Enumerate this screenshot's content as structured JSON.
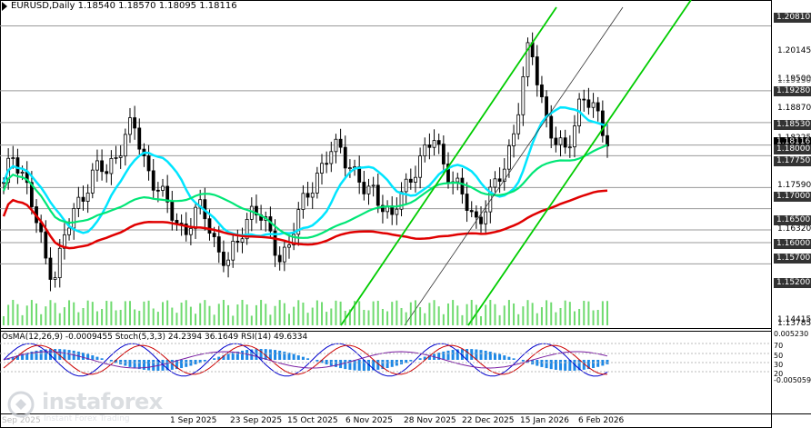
{
  "header": {
    "symbol": "EURUSD,Daily",
    "ohlc": "1.18540 1.18570 1.18095 1.18116"
  },
  "indicator_header": "OsMA(12,26,9) -0.0009455  Stoch(5,3,3) 24.2394 36.1649  RSI(14) 49.6334",
  "price_axis": {
    "ticks": [
      "1.20145",
      "1.19500",
      "1.18870",
      "1.18225",
      "1.17590",
      "1.16320",
      "1.14415",
      "1.13785"
    ],
    "highlighted_levels": [
      "1.20810",
      "1.19280",
      "1.18530",
      "1.18000",
      "1.17750",
      "1.17000",
      "1.16500",
      "1.16000",
      "1.15700",
      "1.15200"
    ],
    "obscured_labels": [
      "1.19130",
      "1.18116"
    ]
  },
  "indicator_axis": {
    "top": "0.005230",
    "bottom": "-0.005059",
    "levels": [
      "70",
      "50",
      "30",
      "20"
    ]
  },
  "date_axis": [
    "Sep 2025",
    "1 Sep 2025",
    "23 Sep 2025",
    "15 Oct 2025",
    "6 Nov 2025",
    "28 Nov 2025",
    "22 Dec 2025",
    "15 Jan 2026",
    "6 Feb 2026"
  ],
  "watermark": {
    "brand": "instaforex",
    "tagline": "Instant Forex Trading"
  },
  "colors": {
    "candle": "#000000",
    "ema_fast": "#00e5ff",
    "ema_mid": "#00e676",
    "ema_slow": "#e00000",
    "channel": "#00cc00",
    "volume": "#33cc33",
    "osma": "#1e88e5",
    "stoch_main": "#0000cc",
    "stoch_signal": "#cc0000",
    "rsi": "#7b1fa2",
    "level_line": "#9a9a9a"
  },
  "chart_data": {
    "type": "candlestick",
    "symbol": "EURUSD",
    "timeframe": "Daily",
    "ylim": [
      1.1375,
      1.2125
    ],
    "levels": [
      1.2081,
      1.1928,
      1.1853,
      1.18,
      1.1775,
      1.17,
      1.165,
      1.16,
      1.157,
      1.152
    ],
    "current_price": 1.18116
  }
}
